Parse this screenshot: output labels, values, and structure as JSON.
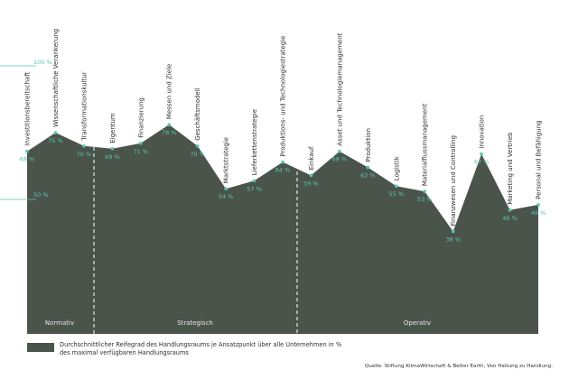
{
  "chart_data": {
    "type": "area",
    "categories": [
      "Investitionsbereitschaft",
      "Wissenschaftliche Verankerung",
      "Transformationskultur",
      "Eigentum",
      "Finanzierung",
      "Messen und Ziele",
      "Geschäftsmodell",
      "Marktstrategie",
      "Lieferkettenstrategie",
      "Produktions- und Technologiestrategie",
      "Einkauf",
      "Asset und Technologiemanagement",
      "Produktion",
      "Logistik",
      "Materialflussmanagement",
      "Finanzwesen und Controlling",
      "Innovation",
      "Marketing und Vertrieb",
      "Personal und Befähigung"
    ],
    "values": [
      68,
      75,
      70,
      69,
      71,
      78,
      70,
      54,
      57,
      64,
      59,
      68,
      62,
      55,
      53,
      38,
      67,
      46,
      48
    ],
    "value_labels": [
      "68 %",
      "75 %",
      "70 %",
      "69 %",
      "71 %",
      "78 %",
      "70 %",
      "54 %",
      "57 %",
      "64 %",
      "59 %",
      "68 %",
      "62 %",
      "55 %",
      "53 %",
      "38 %",
      "67 %",
      "46 %",
      "48 %"
    ],
    "reference_lines": [
      {
        "value": 100,
        "label": "100 %"
      },
      {
        "value": 50,
        "label": "50 %"
      }
    ],
    "sections": [
      {
        "label": "Normativ",
        "start": 0,
        "end": 2
      },
      {
        "label": "Strategisch",
        "start": 3,
        "end": 9
      },
      {
        "label": "Operativ",
        "start": 10,
        "end": 18
      }
    ],
    "legend": "Durchschnittlicher Reifegrad des Handlungsraums je Ansatzpunkt über alle Unternehmen in % des maximal verfügbaren Handlungsraums",
    "source": "Quelle: Stiftung KlimaWirtschaft & Better Earth, Von Haltung zu Handlung.",
    "colors": {
      "area": "#4b544b",
      "accent": "#54c8b0",
      "text": "#2f2f2f",
      "section_text": "#e6e6e6"
    }
  }
}
